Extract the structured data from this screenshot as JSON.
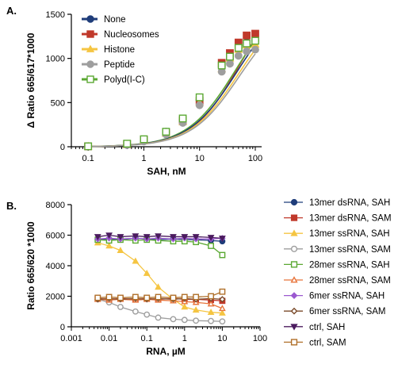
{
  "chart_data": [
    {
      "panel": "A.",
      "type": "line",
      "xlabel": "SAH, nM",
      "ylabel": "Δ Ratio 665/617*1000",
      "xscale": "log",
      "xlim": [
        0.05,
        130
      ],
      "ylim": [
        0,
        1500
      ],
      "x_ticks": [
        0.1,
        1,
        10,
        100
      ],
      "x_tick_labels": [
        "0.1",
        "1",
        "10",
        "100"
      ],
      "y_ticks": [
        0,
        500,
        1000,
        1500
      ],
      "y_tick_labels": [
        "0",
        "500",
        "1000",
        "1500"
      ],
      "legend_position": "top-left",
      "x": [
        0.1,
        0.5,
        1,
        2.5,
        5,
        10,
        25,
        35,
        50,
        70,
        100
      ],
      "series": [
        {
          "name": "None",
          "color": "#1f3d7a",
          "marker": "circle",
          "values": [
            5,
            20,
            70,
            170,
            310,
            530,
            900,
            1000,
            1120,
            1180,
            1200
          ]
        },
        {
          "name": "Nucleosomes",
          "color": "#c0392b",
          "marker": "square",
          "values": [
            5,
            30,
            80,
            160,
            300,
            520,
            950,
            1060,
            1180,
            1260,
            1280
          ]
        },
        {
          "name": "Histone",
          "color": "#f5c542",
          "marker": "triangle",
          "values": [
            5,
            25,
            70,
            150,
            280,
            500,
            880,
            1000,
            1100,
            1150,
            1160
          ]
        },
        {
          "name": "Peptide",
          "color": "#9e9e9e",
          "marker": "circle",
          "values": [
            5,
            20,
            60,
            140,
            270,
            470,
            850,
            940,
            1030,
            1080,
            1100
          ]
        },
        {
          "name": "Polyd(I-C)",
          "color": "#5aa832",
          "marker": "square-open",
          "values": [
            5,
            35,
            85,
            170,
            320,
            560,
            920,
            1020,
            1120,
            1170,
            1200
          ]
        }
      ],
      "fit_curves": [
        {
          "color": "#c0392b",
          "bottom": 0,
          "top": 1900,
          "ec50": 55,
          "hill": 1
        },
        {
          "color": "#5aa832",
          "bottom": 0,
          "top": 1750,
          "ec50": 45,
          "hill": 1
        },
        {
          "color": "#1f3d7a",
          "bottom": 0,
          "top": 1700,
          "ec50": 47,
          "hill": 1
        },
        {
          "color": "#f5c542",
          "bottom": 0,
          "top": 1650,
          "ec50": 50,
          "hill": 1
        },
        {
          "color": "#9e9e9e",
          "bottom": 0,
          "top": 1600,
          "ec50": 52,
          "hill": 1
        }
      ]
    },
    {
      "panel": "B.",
      "type": "line",
      "xlabel": "RNA, µM",
      "ylabel": "Ratio 665/620 *1000",
      "xscale": "log",
      "xlim": [
        0.001,
        100
      ],
      "ylim": [
        0,
        8000
      ],
      "x_ticks": [
        0.001,
        0.01,
        0.1,
        1,
        10,
        100
      ],
      "x_tick_labels": [
        "0.001",
        "0.01",
        "0.1",
        "1",
        "10",
        "100"
      ],
      "y_ticks": [
        0,
        2000,
        4000,
        6000,
        8000
      ],
      "y_tick_labels": [
        "0",
        "2000",
        "4000",
        "6000",
        "8000"
      ],
      "legend_position": "right",
      "x": [
        0.005,
        0.01,
        0.02,
        0.05,
        0.1,
        0.2,
        0.5,
        1,
        2,
        5,
        10
      ],
      "series": [
        {
          "name": "13mer dsRNA, SAH",
          "color": "#1f3d7a",
          "marker": "circle",
          "values": [
            5700,
            5750,
            5700,
            5800,
            5750,
            5700,
            5750,
            5700,
            5700,
            5650,
            5600
          ]
        },
        {
          "name": "13mer dsRNA, SAM",
          "color": "#c0392b",
          "marker": "square",
          "values": [
            1850,
            1800,
            1850,
            1800,
            1850,
            1800,
            1850,
            1800,
            1800,
            1750,
            1700
          ]
        },
        {
          "name": "13mer ssRNA, SAH",
          "color": "#f5c542",
          "marker": "triangle",
          "values": [
            5500,
            5300,
            5000,
            4300,
            3500,
            2600,
            1800,
            1300,
            1100,
            950,
            900
          ]
        },
        {
          "name": "13mer ssRNA, SAM",
          "color": "#9e9e9e",
          "marker": "circle-open",
          "values": [
            1800,
            1600,
            1300,
            1000,
            800,
            600,
            500,
            450,
            400,
            380,
            350
          ]
        },
        {
          "name": "28mer ssRNA, SAH",
          "color": "#5aa832",
          "marker": "square-open",
          "values": [
            5700,
            5650,
            5700,
            5650,
            5700,
            5650,
            5600,
            5600,
            5550,
            5300,
            4700
          ]
        },
        {
          "name": "28mer ssRNA, SAM",
          "color": "#e8743b",
          "marker": "triangle-open",
          "values": [
            1800,
            1750,
            1800,
            1750,
            1800,
            1750,
            1700,
            1650,
            1600,
            1500,
            1200
          ]
        },
        {
          "name": "6mer ssRNA, SAH",
          "color": "#9b59d0",
          "marker": "diamond",
          "values": [
            5750,
            5800,
            5750,
            5800,
            5750,
            5800,
            5750,
            5800,
            5750,
            5750,
            5800
          ]
        },
        {
          "name": "6mer ssRNA, SAM",
          "color": "#7a4a2a",
          "marker": "diamond-open",
          "values": [
            1800,
            1850,
            1800,
            1850,
            1800,
            1850,
            1800,
            1850,
            1800,
            1850,
            1800
          ]
        },
        {
          "name": "ctrl, SAH",
          "color": "#4b1b5e",
          "marker": "triangle-down",
          "values": [
            5900,
            6000,
            5900,
            5950,
            5900,
            5950,
            5900,
            5900,
            5900,
            5850,
            5800
          ]
        },
        {
          "name": "ctrl, SAM",
          "color": "#b0702a",
          "marker": "square-open",
          "values": [
            1900,
            1950,
            1900,
            1950,
            1900,
            1950,
            1900,
            1950,
            1950,
            2000,
            2300
          ]
        }
      ]
    }
  ]
}
